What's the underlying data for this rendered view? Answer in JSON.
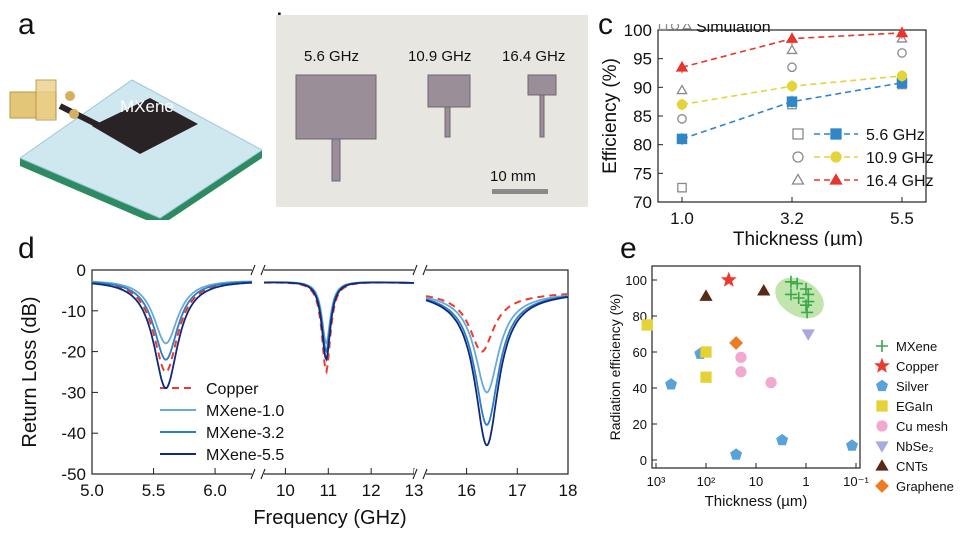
{
  "panels": {
    "a": "a",
    "b": "b",
    "c": "c",
    "d": "d",
    "e": "e"
  },
  "panel_a": {
    "label": "MXene"
  },
  "panel_b": {
    "freqs": [
      "5.6 GHz",
      "10.9 GHz",
      "16.4 GHz"
    ],
    "scale_label": "10 mm"
  },
  "colors": {
    "f56": "#2f86c8",
    "f109": "#e3d43c",
    "f164": "#e8352d",
    "copper": "#ea3b2e",
    "mx10": "#6aa9d8",
    "mx32": "#2c7cc7",
    "mx55": "#0e2a7a"
  },
  "chart_data": [
    {
      "type": "scatter",
      "id": "c",
      "xlabel": "Thickness (µm)",
      "ylabel": "Efficiency (%)",
      "x_categories": [
        "1.0",
        "3.2",
        "5.5"
      ],
      "ylim": [
        70,
        100
      ],
      "yticks": [
        70,
        75,
        80,
        85,
        90,
        95,
        100
      ],
      "annotation": "Simulation",
      "series": [
        {
          "name": "5.6 GHz",
          "color": "#2f86c8",
          "marker": "square",
          "measured": [
            81,
            87.5,
            90.8
          ],
          "simulated": [
            72.5,
            87,
            90.5
          ]
        },
        {
          "name": "10.9 GHz",
          "color": "#e3d43c",
          "marker": "circle",
          "measured": [
            87,
            90.2,
            92
          ],
          "simulated": [
            84.5,
            93.5,
            96
          ]
        },
        {
          "name": "16.4 GHz",
          "color": "#e8352d",
          "marker": "triangle",
          "measured": [
            93.5,
            98.5,
            99.5
          ],
          "simulated": [
            89.5,
            96.5,
            98.5
          ]
        }
      ]
    },
    {
      "type": "line",
      "id": "d",
      "xlabel": "Frequency (GHz)",
      "ylabel": "Return Loss (dB)",
      "ylim": [
        -50,
        0
      ],
      "yticks": [
        0,
        -10,
        -20,
        -30,
        -40,
        -50
      ],
      "segments": [
        {
          "range": [
            5.0,
            6.3
          ],
          "ticks": [
            "5.0",
            "5.5",
            "6.0"
          ]
        },
        {
          "range": [
            9.5,
            13.0
          ],
          "ticks": [
            "10",
            "11",
            "12",
            "13"
          ]
        },
        {
          "range": [
            15.0,
            18.0
          ],
          "ticks": [
            "16",
            "17",
            "18"
          ]
        }
      ],
      "series": [
        {
          "name": "Copper",
          "style": "dashed",
          "color": "#ea3b2e",
          "dips": [
            [
              5.6,
              -25
            ],
            [
              10.95,
              -25
            ],
            [
              16.3,
              -20
            ]
          ]
        },
        {
          "name": "MXene-1.0",
          "style": "solid",
          "color": "#6aa9d8",
          "dips": [
            [
              5.6,
              -18
            ],
            [
              10.95,
              -18
            ],
            [
              16.4,
              -30
            ]
          ]
        },
        {
          "name": "MXene-3.2",
          "style": "solid",
          "color": "#2c7cc7",
          "dips": [
            [
              5.6,
              -22
            ],
            [
              10.95,
              -20
            ],
            [
              16.4,
              -38
            ]
          ]
        },
        {
          "name": "MXene-5.5",
          "style": "solid",
          "color": "#0e2a7a",
          "dips": [
            [
              5.6,
              -29
            ],
            [
              10.95,
              -22
            ],
            [
              16.4,
              -43
            ]
          ]
        }
      ]
    },
    {
      "type": "scatter",
      "id": "e",
      "xlabel": "Thickness (µm)",
      "ylabel": "Radiation efficiency (%)",
      "xscale": "log-reversed",
      "xticks": [
        "10³",
        "10²",
        "10",
        "1",
        "10⁻¹"
      ],
      "ylim": [
        0,
        100
      ],
      "yticks": [
        0,
        20,
        40,
        60,
        80,
        100
      ],
      "series": [
        {
          "name": "MXene",
          "color": "#39a84a",
          "marker": "plus",
          "points": [
            [
              2.0,
              99
            ],
            [
              1.5,
              98
            ],
            [
              1.0,
              95
            ],
            [
              0.9,
              92
            ],
            [
              2.0,
              92
            ],
            [
              1.4,
              90
            ],
            [
              0.9,
              88
            ],
            [
              1.0,
              86
            ],
            [
              0.95,
              82
            ]
          ]
        },
        {
          "name": "Copper",
          "color": "#ea3b2e",
          "marker": "star",
          "points": [
            [
              35,
              100
            ]
          ]
        },
        {
          "name": "Silver",
          "color": "#5aa3d8",
          "marker": "pentagon",
          "points": [
            [
              500,
              42
            ],
            [
              130,
              59
            ],
            [
              25,
              3
            ],
            [
              3,
              11
            ],
            [
              0.12,
              8
            ]
          ]
        },
        {
          "name": "EGaIn",
          "color": "#e5d236",
          "marker": "square",
          "points": [
            [
              1500,
              75
            ],
            [
              100,
              60
            ],
            [
              100,
              46
            ]
          ]
        },
        {
          "name": "Cu mesh",
          "color": "#f3a8cf",
          "marker": "circle",
          "points": [
            [
              20,
              57
            ],
            [
              20,
              49
            ],
            [
              5,
              43
            ]
          ]
        },
        {
          "name": "NbSe₂",
          "color": "#a9a9e0",
          "marker": "triangle-down",
          "points": [
            [
              0.9,
              70
            ]
          ]
        },
        {
          "name": "CNTs",
          "color": "#5a2a16",
          "marker": "triangle",
          "points": [
            [
              100,
              91
            ],
            [
              7,
              94
            ]
          ]
        },
        {
          "name": "Graphene",
          "color": "#ee7a22",
          "marker": "diamond",
          "points": [
            [
              25,
              65
            ]
          ]
        }
      ]
    }
  ]
}
